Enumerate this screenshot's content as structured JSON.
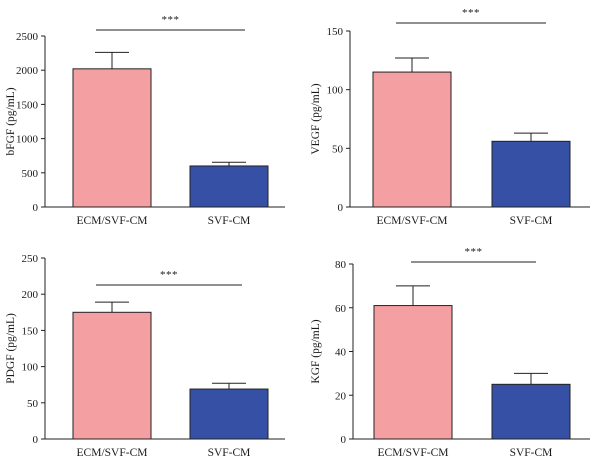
{
  "chart_data": [
    {
      "type": "bar",
      "categories": [
        "ECM/SVF-CM",
        "SVF-CM"
      ],
      "values": [
        2020,
        600
      ],
      "errors": [
        240,
        55
      ],
      "ylabel": "bFGF (pg/mL)",
      "ylim": [
        0,
        2500
      ],
      "yticks": [
        0,
        500,
        1000,
        1500,
        2000,
        2500
      ],
      "significance": "***",
      "bar_colors": [
        "#f4a0a3",
        "#3650a5"
      ]
    },
    {
      "type": "bar",
      "categories": [
        "ECM/SVF-CM",
        "SVF-CM"
      ],
      "values": [
        115,
        56
      ],
      "errors": [
        12,
        7
      ],
      "ylabel": "VEGF (pg/mL)",
      "ylim": [
        0,
        150
      ],
      "yticks": [
        0,
        50,
        100,
        150
      ],
      "significance": "***",
      "bar_colors": [
        "#f4a0a3",
        "#3650a5"
      ]
    },
    {
      "type": "bar",
      "categories": [
        "ECM/SVF-CM",
        "SVF-CM"
      ],
      "values": [
        175,
        69
      ],
      "errors": [
        14,
        8
      ],
      "ylabel": "PDGF (pg/mL)",
      "ylim": [
        0,
        250
      ],
      "yticks": [
        0,
        50,
        100,
        150,
        200,
        250
      ],
      "significance": "***",
      "bar_colors": [
        "#f4a0a3",
        "#3650a5"
      ]
    },
    {
      "type": "bar",
      "categories": [
        "ECM/SVF-CM",
        "SVF-CM"
      ],
      "values": [
        61,
        25
      ],
      "errors": [
        9,
        5
      ],
      "ylabel": "KGF (pg/mL)",
      "ylim": [
        0,
        80
      ],
      "yticks": [
        0,
        20,
        40,
        60,
        80
      ],
      "significance": "***",
      "bar_colors": [
        "#f4a0a3",
        "#3650a5"
      ]
    }
  ]
}
